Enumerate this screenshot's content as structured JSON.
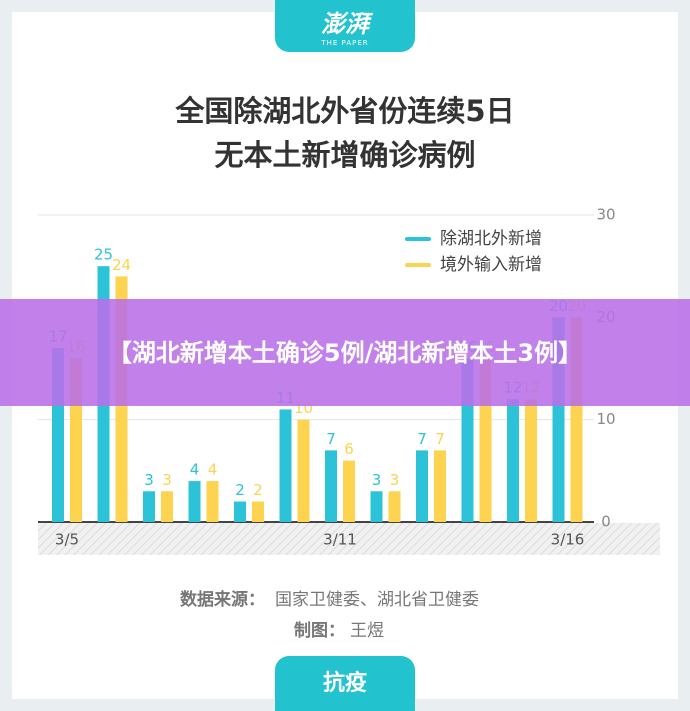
{
  "logo": "澎湃",
  "logo_sub": "THE PAPER",
  "chart_data": {
    "type": "bar",
    "title": [
      "全国除湖北外省份连续5日",
      "无本土新增确诊病例"
    ],
    "categories": [
      "3/5",
      null,
      null,
      null,
      null,
      null,
      "3/11",
      null,
      null,
      null,
      null,
      "3/16"
    ],
    "series": [
      {
        "name": "除湖北外新增",
        "color": "#2cc3d9",
        "values": [
          17,
          25,
          3,
          4,
          2,
          11,
          7,
          3,
          7,
          16,
          12,
          20
        ]
      },
      {
        "name": "境外输入新增",
        "color": "#fdd34f",
        "values": [
          16,
          24,
          3,
          4,
          2,
          10,
          6,
          3,
          7,
          16,
          12,
          20
        ]
      }
    ],
    "ylim": [
      0,
      30
    ],
    "yticks": [
      0,
      10,
      20,
      30
    ],
    "grid": true
  },
  "source_label": "数据来源：",
  "source": "国家卫健委、湖北省卫健委",
  "credit_label": "制图：",
  "credit": "王煜",
  "banner": "【湖北新增本土确诊5例/湖北新增本土3例】",
  "footer_tab": "抗疫"
}
